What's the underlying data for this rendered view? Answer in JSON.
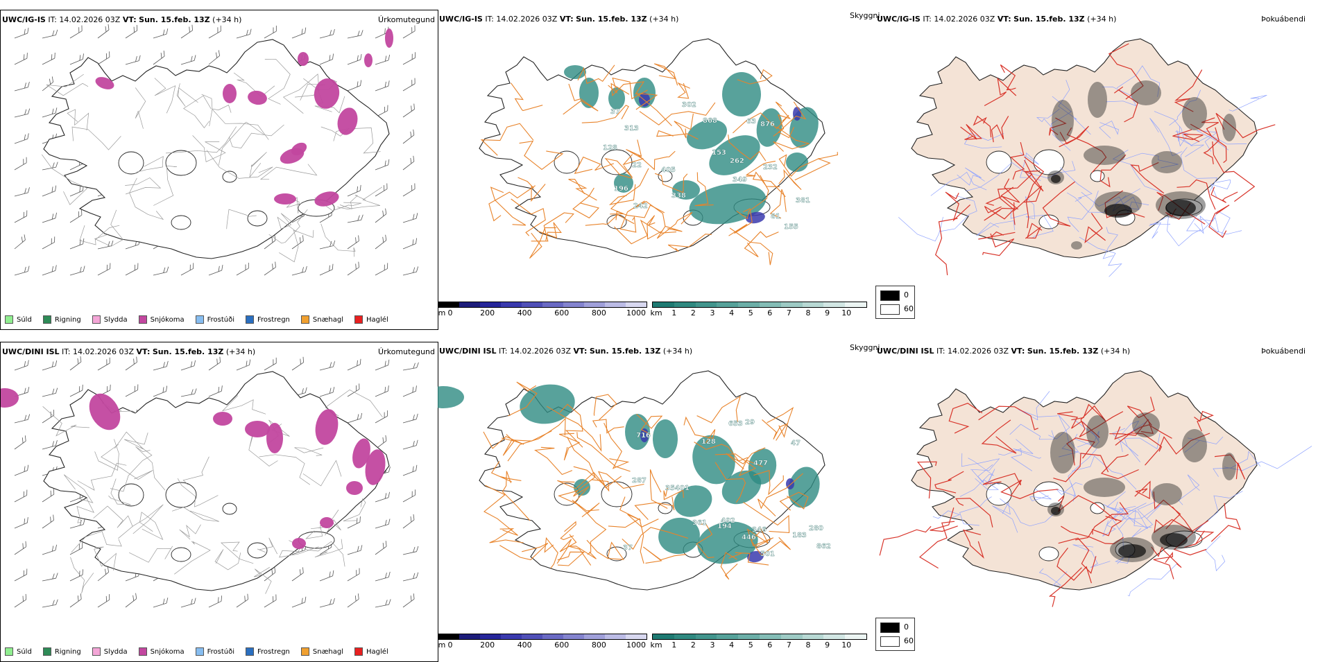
{
  "header": {
    "it_label": "IT:",
    "it_value": "14.02.2026 03Z",
    "vt_label": "VT:",
    "vt_value": "Sun. 15.feb. 13Z",
    "lead": "(+34 h)"
  },
  "rows": [
    {
      "model": "UWC/IG-IS"
    },
    {
      "model": "UWC/DINI ISL"
    }
  ],
  "panels": {
    "precip": {
      "title": "Úrkomutegund"
    },
    "visibility": {
      "title": "Skyggni"
    },
    "cloud": {
      "title": "Þokuábendi"
    }
  },
  "precip_legend": [
    {
      "label": "Súld",
      "color": "#90ee90"
    },
    {
      "label": "Rigning",
      "color": "#2e8b57"
    },
    {
      "label": "Slydda",
      "color": "#f4a6d7"
    },
    {
      "label": "Snjókoma",
      "color": "#c2479f"
    },
    {
      "label": "Frostúði",
      "color": "#87bdf0"
    },
    {
      "label": "Frostregn",
      "color": "#2a6fc0"
    },
    {
      "label": "Snæhagl",
      "color": "#f0a030"
    },
    {
      "label": "Haglél",
      "color": "#e82020"
    }
  ],
  "scale_m": {
    "unit": "m",
    "ticks": [
      "0",
      "200",
      "400",
      "600",
      "800",
      "1000"
    ],
    "colors": [
      "#000000",
      "#1c1c7a",
      "#26269a",
      "#3a3aae",
      "#5050b8",
      "#6a6ac4",
      "#8484cf",
      "#a0a0da",
      "#bcbce6",
      "#d8d8f0"
    ]
  },
  "scale_km": {
    "unit": "km",
    "ticks": [
      "1",
      "2",
      "3",
      "4",
      "5",
      "6",
      "7",
      "8",
      "9",
      "10"
    ],
    "colors": [
      "#1e7a72",
      "#2f8980",
      "#42958d",
      "#56a29a",
      "#6cafa8",
      "#84bdb6",
      "#9ecbc5",
      "#b8d9d4",
      "#d2e7e4",
      "#ecf5f3"
    ]
  },
  "cloud_legend": {
    "low": "0",
    "high": "60"
  },
  "visibility_labels": [
    [
      "155",
      "22",
      "349",
      "37",
      "381",
      "313",
      "242",
      "405",
      "876",
      "868",
      "63",
      "81",
      "338",
      "302",
      "262",
      "196",
      "232",
      "153",
      "128"
    ],
    [
      "183",
      "280",
      "492",
      "653",
      "346",
      "477",
      "501",
      "862",
      "716",
      "446",
      "287",
      "35401",
      "29",
      "194",
      "361",
      "37",
      "128",
      "47"
    ]
  ],
  "colors": {
    "precip_accent": "#c2479f",
    "vis_teal": "#2e8b82",
    "land_fill": "#f4e3d6",
    "road_orange": "#e8832a",
    "road_red": "#d8342a"
  }
}
